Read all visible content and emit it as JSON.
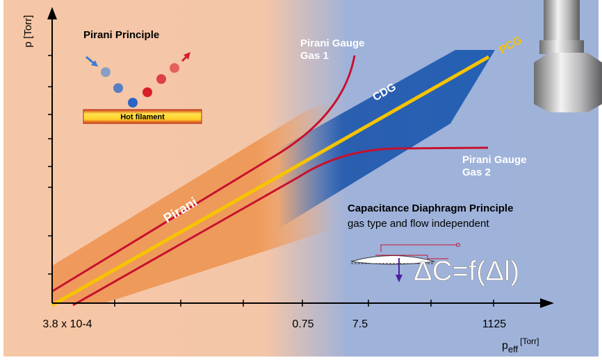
{
  "axes": {
    "y_label": "p [Torr]",
    "x_label": {
      "main": "p",
      "sub": "eff",
      "unit": "[Torr]"
    },
    "x_ticks": [
      "3.8 x 10-4",
      "0.75",
      "7.5",
      "1125"
    ]
  },
  "inset": {
    "title": "Pirani Principle",
    "filament": "Hot filament"
  },
  "curves": {
    "gas1": [
      "Pirani Gauge",
      "Gas 1"
    ],
    "gas2": [
      "Pirani Gauge",
      "Gas 2"
    ]
  },
  "bands": {
    "pirani": "Pirani",
    "cdg": "CDG",
    "pcg": "PCG"
  },
  "cdp": {
    "title": "Capacitance Diaphragm Principle",
    "subtitle": "gas type and flow independent",
    "formula": "ΔC=f(Δl)"
  }
}
